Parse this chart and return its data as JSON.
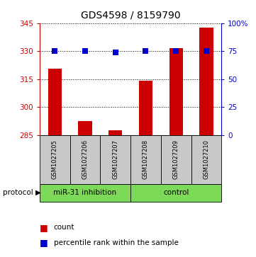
{
  "title": "GDS4598 / 8159790",
  "samples": [
    "GSM1027205",
    "GSM1027206",
    "GSM1027207",
    "GSM1027208",
    "GSM1027209",
    "GSM1027210"
  ],
  "counts": [
    320.5,
    292.5,
    287.5,
    314.0,
    331.5,
    342.5
  ],
  "percentiles": [
    75,
    75,
    74,
    75,
    75,
    75
  ],
  "ylim_left": [
    285,
    345
  ],
  "yticks_left": [
    285,
    300,
    315,
    330,
    345
  ],
  "ylim_right": [
    0,
    100
  ],
  "yticks_right": [
    0,
    25,
    50,
    75,
    100
  ],
  "ytick_labels_right": [
    "0",
    "25",
    "50",
    "75",
    "100%"
  ],
  "bar_color": "#cc0000",
  "dot_color": "#0000cc",
  "left_axis_color": "#cc0000",
  "right_axis_color": "#0000cc",
  "group1_label": "miR-31 inhibition",
  "group2_label": "control",
  "group1_indices": [
    0,
    1,
    2
  ],
  "group2_indices": [
    3,
    4,
    5
  ],
  "protocol_label": "protocol",
  "legend_count": "count",
  "legend_pct": "percentile rank within the sample",
  "group_box_color": "#c8c8c8",
  "group_label_bg": "#7dda58",
  "bar_width": 0.45,
  "dot_size": 40,
  "bg_color": "#ffffff"
}
